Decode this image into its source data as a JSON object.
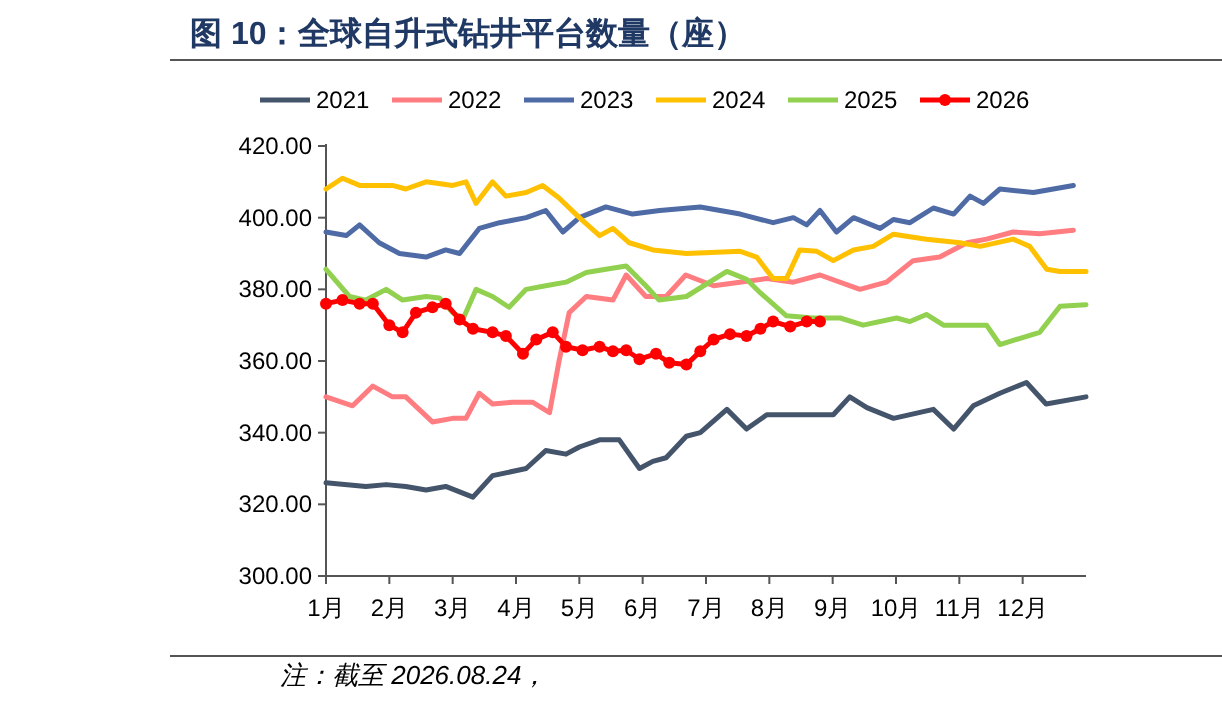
{
  "chart_data": {
    "type": "line",
    "title": "图 10：全球自升式钻井平台数量（座）",
    "annotations": [
      "注：截至 2026.08.24，"
    ],
    "xlim": [
      1,
      13
    ],
    "xticks": [
      {
        "value": 1,
        "label": "1月"
      },
      {
        "value": 2,
        "label": "2月"
      },
      {
        "value": 3,
        "label": "3月"
      },
      {
        "value": 4,
        "label": "4月"
      },
      {
        "value": 5,
        "label": "5月"
      },
      {
        "value": 6,
        "label": "6月"
      },
      {
        "value": 7,
        "label": "7月"
      },
      {
        "value": 8,
        "label": "8月"
      },
      {
        "value": 9,
        "label": "9月"
      },
      {
        "value": 10,
        "label": "10月"
      },
      {
        "value": 11,
        "label": "11月"
      },
      {
        "value": 12,
        "label": "12月"
      }
    ],
    "ylim": [
      300,
      420
    ],
    "yticks": [
      {
        "value": 300,
        "label": "300.00"
      },
      {
        "value": 320,
        "label": "320.00"
      },
      {
        "value": 340,
        "label": "340.00"
      },
      {
        "value": 360,
        "label": "360.00"
      },
      {
        "value": 380,
        "label": "380.00"
      },
      {
        "value": 400,
        "label": "400.00"
      },
      {
        "value": 420,
        "label": "420.00"
      }
    ],
    "grid": false,
    "legend": "top",
    "series": [
      {
        "name": "2021",
        "color": "#44546a",
        "x": [
          1,
          1.63,
          1.95,
          2.26,
          2.58,
          2.89,
          3.32,
          3.63,
          4.16,
          4.47,
          4.79,
          5.0,
          5.32,
          5.63,
          5.95,
          6.16,
          6.37,
          6.69,
          6.91,
          7.33,
          7.64,
          7.96,
          8.38,
          9.01,
          9.27,
          9.54,
          9.96,
          10.59,
          10.91,
          11.22,
          11.64,
          12.06,
          12.37,
          13.0
        ],
        "values": [
          326,
          325,
          325.5,
          325,
          324,
          325,
          322,
          328,
          330,
          335,
          334,
          336,
          338,
          338,
          330,
          332,
          333,
          339,
          340,
          346.5,
          341,
          345,
          345,
          345,
          350,
          347,
          344,
          346.5,
          341,
          347.5,
          351,
          354,
          348,
          350
        ]
      },
      {
        "name": "2022",
        "color": "#ff7c80",
        "x": [
          1,
          1.42,
          1.74,
          2.05,
          2.26,
          2.68,
          3.0,
          3.21,
          3.42,
          3.63,
          3.95,
          4.26,
          4.53,
          4.68,
          4.84,
          5.11,
          5.53,
          5.74,
          6.05,
          6.37,
          6.68,
          7.12,
          7.96,
          8.38,
          8.8,
          9.43,
          9.85,
          10.27,
          10.69,
          11.12,
          11.43,
          11.85,
          12.27,
          12.8
        ],
        "values": [
          350,
          347.5,
          353,
          350,
          350,
          343,
          344,
          344,
          351,
          348,
          348.5,
          348.5,
          345.6,
          360,
          373.5,
          378,
          377,
          384,
          378,
          378,
          384,
          381,
          383,
          382,
          384,
          380,
          382,
          388,
          389,
          393,
          394,
          396,
          395.5,
          396.5
        ]
      },
      {
        "name": "2023",
        "color": "#4f6ba6",
        "x": [
          1,
          1.32,
          1.53,
          1.84,
          2.16,
          2.58,
          2.89,
          3.11,
          3.42,
          3.74,
          4.16,
          4.47,
          4.74,
          5.0,
          5.42,
          5.84,
          6.27,
          6.91,
          7.54,
          8.06,
          8.38,
          8.59,
          8.8,
          9.06,
          9.33,
          9.75,
          9.96,
          10.22,
          10.59,
          10.91,
          11.17,
          11.38,
          11.64,
          12.17,
          12.8
        ],
        "values": [
          396,
          395,
          398,
          393,
          390,
          389,
          391,
          390,
          397,
          398.6,
          400,
          402,
          396,
          400,
          403,
          401,
          402,
          403,
          401,
          398.6,
          400,
          398,
          402,
          396,
          400,
          397,
          399.5,
          398.6,
          402.7,
          401,
          406,
          404,
          408,
          407,
          409
        ]
      },
      {
        "name": "2024",
        "color": "#ffc000",
        "x": [
          1,
          1.26,
          1.53,
          2.05,
          2.26,
          2.58,
          3.0,
          3.21,
          3.37,
          3.63,
          3.84,
          4.16,
          4.42,
          4.68,
          5.0,
          5.32,
          5.53,
          5.79,
          6.16,
          6.69,
          7.54,
          7.8,
          8.06,
          8.27,
          8.48,
          8.75,
          9.01,
          9.33,
          9.64,
          9.96,
          10.48,
          11.01,
          11.33,
          11.85,
          12.11,
          12.38,
          12.59,
          13.0
        ],
        "values": [
          408,
          411,
          409,
          409,
          408,
          410,
          409,
          410,
          404,
          410,
          406,
          407,
          409,
          405.5,
          400,
          395,
          397,
          393,
          391,
          390,
          390.6,
          389,
          383,
          383,
          391,
          390.6,
          388,
          391,
          392,
          395.4,
          394,
          393,
          392,
          394,
          392,
          385.6,
          385,
          385
        ]
      },
      {
        "name": "2025",
        "color": "#92d050",
        "x": [
          1,
          1.37,
          1.63,
          1.95,
          2.21,
          2.58,
          2.79,
          3.0,
          3.16,
          3.37,
          3.63,
          3.89,
          4.16,
          4.47,
          4.79,
          5.11,
          5.42,
          5.74,
          6.05,
          6.26,
          6.69,
          7.33,
          7.64,
          7.86,
          8.27,
          8.69,
          9.12,
          9.48,
          10.01,
          10.22,
          10.48,
          10.75,
          11.43,
          11.64,
          12.27,
          12.59,
          13.0
        ],
        "values": [
          385.6,
          378,
          377,
          380,
          377,
          378,
          377.6,
          373.5,
          371.6,
          380,
          378,
          375,
          380,
          381,
          382,
          384.7,
          385.6,
          386.5,
          381,
          377,
          378,
          385,
          382.8,
          379,
          372.6,
          372,
          372,
          370,
          372,
          371,
          373,
          370,
          370,
          364.6,
          368,
          375.3,
          375.7
        ]
      },
      {
        "name": "2026",
        "color": "#ff0000",
        "marker": "circle",
        "x": [
          1,
          1.26,
          1.53,
          1.74,
          2.0,
          2.21,
          2.42,
          2.68,
          2.89,
          3.11,
          3.32,
          3.63,
          3.84,
          4.11,
          4.32,
          4.58,
          4.79,
          5.05,
          5.32,
          5.53,
          5.74,
          5.95,
          6.21,
          6.42,
          6.69,
          6.91,
          7.12,
          7.38,
          7.64,
          7.86,
          8.06,
          8.33,
          8.59,
          8.8
        ],
        "values": [
          376,
          377,
          376,
          376,
          370,
          368,
          373.5,
          375,
          376,
          371.6,
          369,
          368,
          367,
          362,
          366,
          368,
          364,
          363,
          364,
          362.7,
          363,
          360.5,
          362,
          359.5,
          359,
          362.7,
          366,
          367.5,
          367,
          369,
          371,
          369.6,
          371,
          371
        ]
      }
    ]
  }
}
